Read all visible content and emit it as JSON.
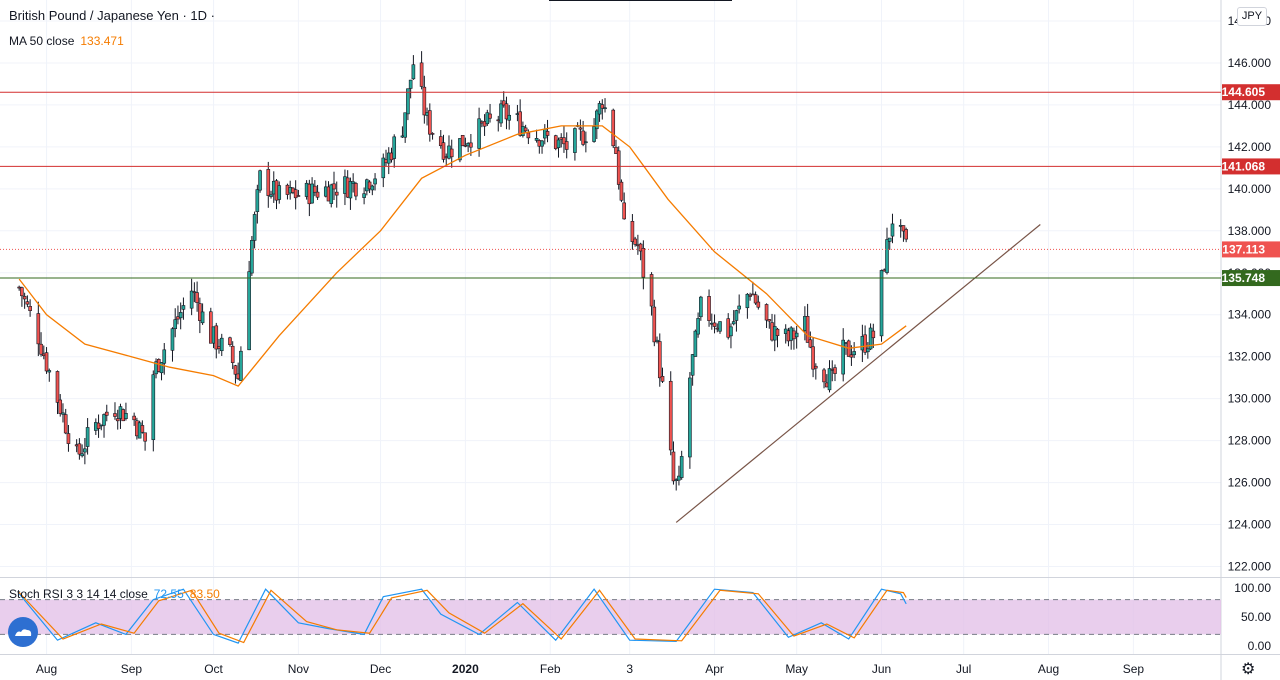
{
  "header": {
    "title": "British Pound / Japanese Yen · 1D ·",
    "ma_label": "MA 50 close",
    "ma_value": "133.471"
  },
  "currency_badge": "JPY",
  "indicator": {
    "label": "Stoch RSI 3 3 14 14 close",
    "k_value": "72.55",
    "d_value": "83.50",
    "ticks": [
      "100.00",
      "50.00",
      "0.00"
    ],
    "k_color": "#2196f3",
    "d_color": "#f57c00",
    "band_color": "#e1bee7"
  },
  "colors": {
    "up": "#26a69a",
    "down": "#ef5350",
    "resistance": "#d32f2f",
    "support": "#33691e",
    "ma": "#f57c00",
    "trendline": "#795548"
  },
  "icons": {
    "logo": "tradingview-logo-icon",
    "settings": "gear-icon"
  },
  "chart_data": {
    "type": "candlestick",
    "title": "British Pound / Japanese Yen · 1D",
    "y_ticks": [
      "148.000",
      "146.000",
      "144.000",
      "142.000",
      "140.000",
      "138.000",
      "136.000",
      "134.000",
      "132.000",
      "130.000",
      "128.000",
      "126.000",
      "124.000",
      "122.000"
    ],
    "ylim": [
      121.5,
      149
    ],
    "x_ticks": [
      "Aug",
      "Sep",
      "Oct",
      "Nov",
      "Dec",
      "2020",
      "Feb",
      "3",
      "Apr",
      "May",
      "Jun",
      "Jul",
      "Aug",
      "Sep"
    ],
    "levels": [
      {
        "value": 144.605,
        "label": "144.605",
        "style": "resistance"
      },
      {
        "value": 141.068,
        "label": "141.068",
        "style": "resistance"
      },
      {
        "value": 137.113,
        "label": "137.113",
        "style": "last-price"
      },
      {
        "value": 135.748,
        "label": "135.748",
        "style": "support"
      }
    ],
    "trendline": {
      "from": {
        "date": "2020-03-18",
        "value": 124.1
      },
      "to": {
        "date": "2020-07-29",
        "value": 138.3
      }
    },
    "close_path": [
      [
        "2019-07-22",
        135.3
      ],
      [
        "2019-07-29",
        133.0
      ],
      [
        "2019-08-05",
        130.0
      ],
      [
        "2019-08-12",
        127.2
      ],
      [
        "2019-08-19",
        128.8
      ],
      [
        "2019-08-26",
        129.6
      ],
      [
        "2019-09-02",
        129.0
      ],
      [
        "2019-09-06",
        128.0
      ],
      [
        "2019-09-09",
        131.2
      ],
      [
        "2019-09-16",
        133.3
      ],
      [
        "2019-09-23",
        135.2
      ],
      [
        "2019-09-30",
        133.0
      ],
      [
        "2019-10-07",
        132.1
      ],
      [
        "2019-10-10",
        131.0
      ],
      [
        "2019-10-14",
        136.5
      ],
      [
        "2019-10-18",
        140.5
      ],
      [
        "2019-10-25",
        139.6
      ],
      [
        "2019-11-04",
        139.8
      ],
      [
        "2019-11-15",
        140.1
      ],
      [
        "2019-11-25",
        140.3
      ],
      [
        "2019-12-02",
        141.0
      ],
      [
        "2019-12-09",
        143.0
      ],
      [
        "2019-12-13",
        146.0
      ],
      [
        "2019-12-18",
        143.2
      ],
      [
        "2019-12-25",
        141.8
      ],
      [
        "2020-01-06",
        142.8
      ],
      [
        "2020-01-15",
        143.6
      ],
      [
        "2020-01-27",
        142.6
      ],
      [
        "2020-02-07",
        142.0
      ],
      [
        "2020-02-17",
        143.0
      ],
      [
        "2020-02-20",
        144.3
      ],
      [
        "2020-02-25",
        141.8
      ],
      [
        "2020-02-28",
        138.0
      ],
      [
        "2020-03-04",
        137.3
      ],
      [
        "2020-03-09",
        134.2
      ],
      [
        "2020-03-13",
        130.5
      ],
      [
        "2020-03-17",
        126.0
      ],
      [
        "2020-03-19",
        125.8
      ],
      [
        "2020-03-23",
        131.0
      ],
      [
        "2020-03-27",
        134.3
      ],
      [
        "2020-04-06",
        133.2
      ],
      [
        "2020-04-14",
        135.2
      ],
      [
        "2020-04-21",
        133.3
      ],
      [
        "2020-04-28",
        132.8
      ],
      [
        "2020-05-04",
        133.5
      ],
      [
        "2020-05-07",
        132.0
      ],
      [
        "2020-05-14",
        130.8
      ],
      [
        "2020-05-18",
        132.2
      ],
      [
        "2020-05-25",
        132.6
      ],
      [
        "2020-05-29",
        133.0
      ],
      [
        "2020-06-02",
        136.5
      ],
      [
        "2020-06-05",
        138.6
      ],
      [
        "2020-06-10",
        137.113
      ]
    ],
    "ma50": [
      [
        "2019-07-22",
        135.7
      ],
      [
        "2019-08-01",
        134.0
      ],
      [
        "2019-08-15",
        132.6
      ],
      [
        "2019-09-01",
        132.0
      ],
      [
        "2019-09-15",
        131.5
      ],
      [
        "2019-10-01",
        131.1
      ],
      [
        "2019-10-10",
        130.6
      ],
      [
        "2019-10-25",
        133.0
      ],
      [
        "2019-11-15",
        136.0
      ],
      [
        "2019-12-01",
        138.0
      ],
      [
        "2019-12-16",
        140.5
      ],
      [
        "2020-01-01",
        141.6
      ],
      [
        "2020-01-20",
        142.6
      ],
      [
        "2020-02-05",
        143.0
      ],
      [
        "2020-02-20",
        143.0
      ],
      [
        "2020-03-01",
        142.0
      ],
      [
        "2020-03-15",
        139.5
      ],
      [
        "2020-04-01",
        137.0
      ],
      [
        "2020-04-20",
        135.0
      ],
      [
        "2020-05-05",
        133.0
      ],
      [
        "2020-05-20",
        132.4
      ],
      [
        "2020-06-01",
        132.6
      ],
      [
        "2020-06-10",
        133.471
      ]
    ],
    "stoch_k": [
      [
        "2019-07-22",
        90
      ],
      [
        "2019-08-05",
        10
      ],
      [
        "2019-08-19",
        40
      ],
      [
        "2019-08-30",
        20
      ],
      [
        "2019-09-09",
        80
      ],
      [
        "2019-09-20",
        98
      ],
      [
        "2019-10-01",
        20
      ],
      [
        "2019-10-10",
        5
      ],
      [
        "2019-10-20",
        98
      ],
      [
        "2019-11-01",
        40
      ],
      [
        "2019-11-12",
        30
      ],
      [
        "2019-11-25",
        20
      ],
      [
        "2019-12-02",
        85
      ],
      [
        "2019-12-16",
        98
      ],
      [
        "2019-12-23",
        55
      ],
      [
        "2020-01-06",
        20
      ],
      [
        "2020-01-20",
        75
      ],
      [
        "2020-02-03",
        10
      ],
      [
        "2020-02-17",
        98
      ],
      [
        "2020-03-01",
        10
      ],
      [
        "2020-03-18",
        8
      ],
      [
        "2020-04-01",
        98
      ],
      [
        "2020-04-15",
        92
      ],
      [
        "2020-04-28",
        15
      ],
      [
        "2020-05-10",
        40
      ],
      [
        "2020-05-20",
        12
      ],
      [
        "2020-06-01",
        98
      ],
      [
        "2020-06-08",
        90
      ],
      [
        "2020-06-10",
        72.55
      ]
    ],
    "stoch_d": [
      [
        "2019-07-22",
        92
      ],
      [
        "2019-08-07",
        12
      ],
      [
        "2019-08-21",
        38
      ],
      [
        "2019-09-02",
        22
      ],
      [
        "2019-09-11",
        78
      ],
      [
        "2019-09-23",
        96
      ],
      [
        "2019-10-03",
        22
      ],
      [
        "2019-10-12",
        6
      ],
      [
        "2019-10-22",
        96
      ],
      [
        "2019-11-04",
        42
      ],
      [
        "2019-11-15",
        28
      ],
      [
        "2019-11-27",
        22
      ],
      [
        "2019-12-05",
        83
      ],
      [
        "2019-12-18",
        96
      ],
      [
        "2019-12-26",
        57
      ],
      [
        "2020-01-08",
        22
      ],
      [
        "2020-01-22",
        73
      ],
      [
        "2020-02-05",
        12
      ],
      [
        "2020-02-19",
        96
      ],
      [
        "2020-03-03",
        12
      ],
      [
        "2020-03-20",
        9
      ],
      [
        "2020-04-03",
        96
      ],
      [
        "2020-04-17",
        90
      ],
      [
        "2020-04-30",
        17
      ],
      [
        "2020-05-12",
        38
      ],
      [
        "2020-05-22",
        14
      ],
      [
        "2020-06-03",
        96
      ],
      [
        "2020-06-09",
        92
      ],
      [
        "2020-06-10",
        83.5
      ]
    ],
    "x_start": "2019-07-15",
    "x_end": "2020-10-03"
  }
}
